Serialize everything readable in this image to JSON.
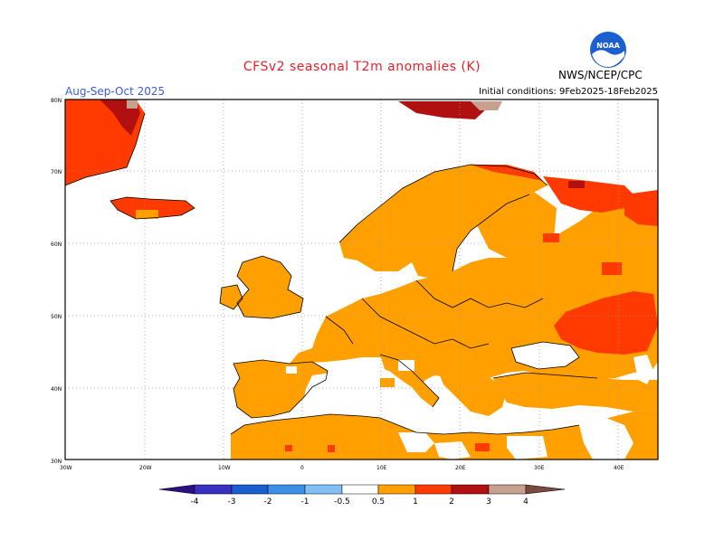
{
  "title": "CFSv2 seasonal T2m anomalies (K)",
  "season": "Aug-Sep-Oct 2025",
  "initial_conditions": "Initial conditions: 9Feb2025-18Feb2025",
  "agency": "NWS/NCEP/CPC",
  "logo_text": "NOAA",
  "lat_labels": [
    "80N",
    "70N",
    "60N",
    "50N",
    "40N",
    "30N"
  ],
  "lon_labels": [
    "30W",
    "20W",
    "10W",
    "0",
    "10E",
    "20E",
    "30E",
    "40E"
  ],
  "legend": {
    "ticks": [
      "-4",
      "-3",
      "-2",
      "-1",
      "-0.5",
      "0.5",
      "1",
      "2",
      "3",
      "4"
    ],
    "colors": {
      "lt_-4": "#2a1080",
      "-4_-3": "#3a30c0",
      "-3_-2": "#1a5fd0",
      "-2_-1": "#3a90e8",
      "-1_-0.5": "#80c0f5",
      "-0.5_0.5": "#ffffff",
      "0.5_1": "#ffa000",
      "1_2": "#ff3a00",
      "2_3": "#b01010",
      "3_4": "#c8a090",
      "gt_4": "#7a4a40"
    }
  },
  "colors": {
    "orange": "#ffa000",
    "red": "#ff3a00",
    "darkred": "#b01010",
    "rose": "#c8a090"
  }
}
